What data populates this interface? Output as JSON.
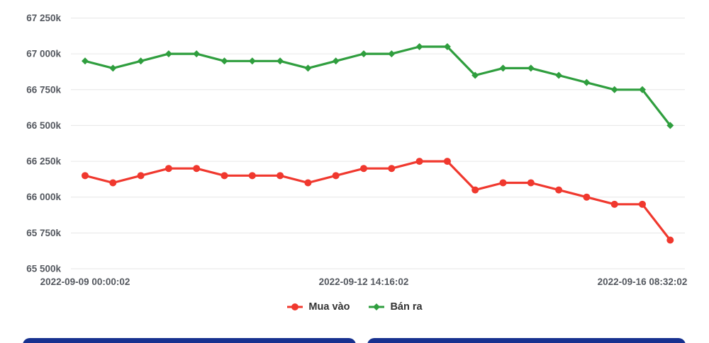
{
  "colors": {
    "buy_line": "#f0382e",
    "sell_line": "#2f9e3e",
    "grid_line": "#e6e6e6",
    "axis_text": "#54585f",
    "legend_text": "#333333",
    "bottom_card": "#17318f",
    "background": "#ffffff"
  },
  "chart_data": {
    "type": "line",
    "title": "",
    "xlabel": "",
    "ylabel": "",
    "ylim": [
      65500,
      67250
    ],
    "grid": true,
    "legend_position": "bottom",
    "num_points": 22,
    "y_ticks": [
      {
        "value": 67250,
        "label": "67 250k"
      },
      {
        "value": 67000,
        "label": "67 000k"
      },
      {
        "value": 66750,
        "label": "66 750k"
      },
      {
        "value": 66500,
        "label": "66 500k"
      },
      {
        "value": 66250,
        "label": "66 250k"
      },
      {
        "value": 66000,
        "label": "66 000k"
      },
      {
        "value": 65750,
        "label": "65 750k"
      },
      {
        "value": 65500,
        "label": "65 500k"
      }
    ],
    "x_ticks": [
      {
        "index": 0,
        "label": "2022-09-09 00:00:02"
      },
      {
        "index": 10,
        "label": "2022-09-12 14:16:02"
      },
      {
        "index": 20,
        "label": "2022-09-16 08:32:02"
      }
    ],
    "series": [
      {
        "name": "Mua vào",
        "color": "#f0382e",
        "marker": "circle",
        "values": [
          66150,
          66100,
          66150,
          66200,
          66200,
          66150,
          66150,
          66150,
          66100,
          66150,
          66200,
          66200,
          66250,
          66250,
          66050,
          66100,
          66100,
          66050,
          66000,
          65950,
          65950,
          65700
        ]
      },
      {
        "name": "Bán ra",
        "color": "#2f9e3e",
        "marker": "diamond",
        "values": [
          66950,
          66900,
          66950,
          67000,
          67000,
          66950,
          66950,
          66950,
          66900,
          66950,
          67000,
          67000,
          67050,
          67050,
          66850,
          66900,
          66900,
          66850,
          66800,
          66750,
          66750,
          66500
        ]
      }
    ]
  }
}
